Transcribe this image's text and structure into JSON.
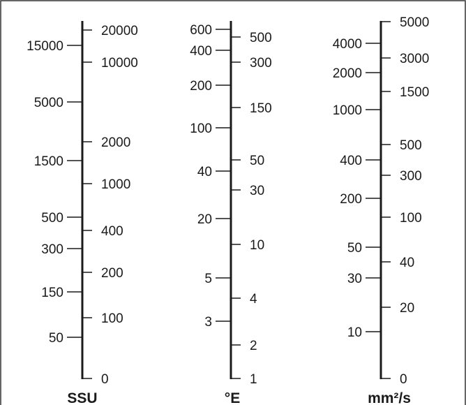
{
  "chart_data": {
    "type": "nomogram",
    "axes": [
      {
        "name": "SSU",
        "label": "SSU",
        "left_ticks": [
          "15000",
          "5000",
          "1500",
          "500",
          "300",
          "150",
          "50"
        ],
        "right_ticks": [
          "20000",
          "10000",
          "2000",
          "1000",
          "400",
          "200",
          "100",
          "0"
        ]
      },
      {
        "name": "degree-e",
        "label": "°E",
        "left_ticks": [
          "600",
          "400",
          "200",
          "100",
          "40",
          "20",
          "5",
          "3"
        ],
        "right_ticks": [
          "500",
          "300",
          "150",
          "50",
          "30",
          "10",
          "4",
          "2",
          "1"
        ]
      },
      {
        "name": "mm2s",
        "label": "mm²/s",
        "left_ticks": [
          "4000",
          "2000",
          "1000",
          "400",
          "200",
          "50",
          "30",
          "10"
        ],
        "right_ticks": [
          "5000",
          "3000",
          "1500",
          "500",
          "300",
          "100",
          "40",
          "20",
          "0"
        ]
      }
    ]
  }
}
